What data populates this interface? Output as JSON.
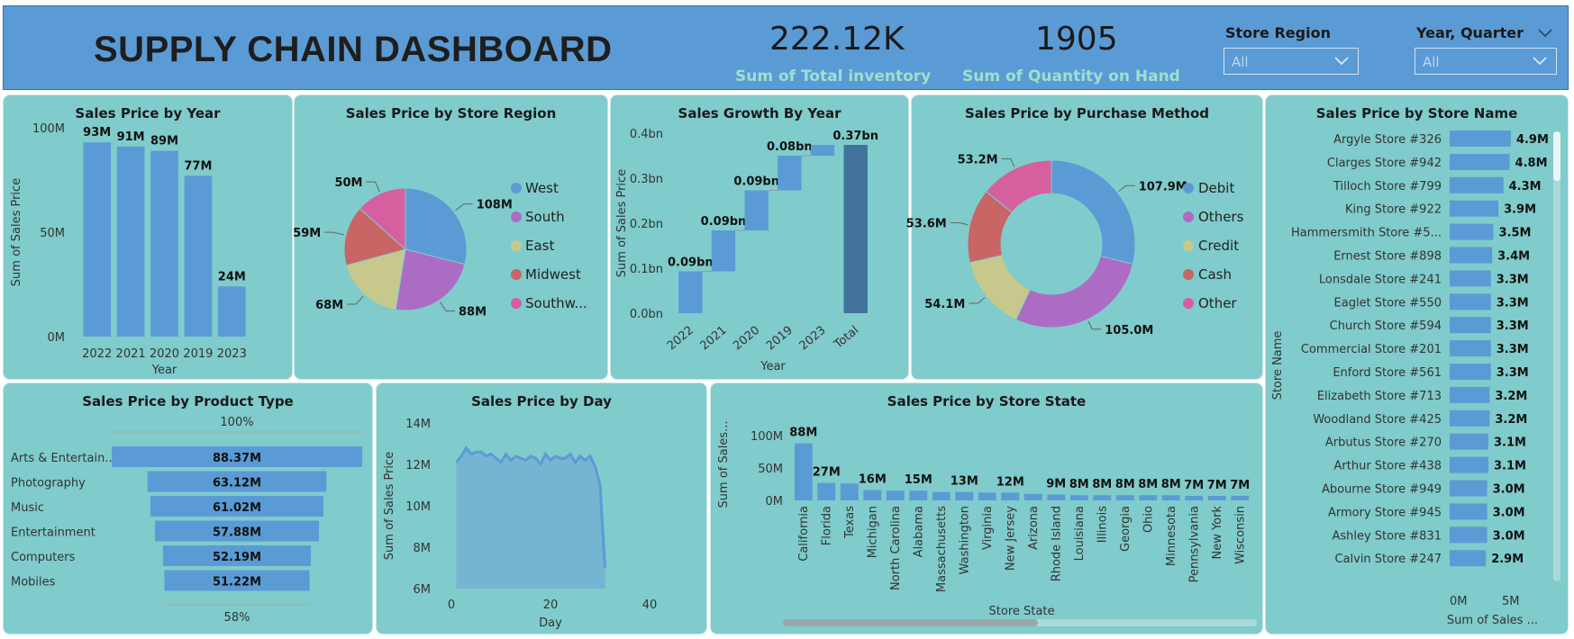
{
  "header": {
    "title": "SUPPLY CHAIN DASHBOARD",
    "kpi1": {
      "value": "222.12K",
      "label": "Sum of Total inventory"
    },
    "kpi2": {
      "value": "1905",
      "label": "Sum of Quantity on Hand"
    },
    "slicer_region": {
      "label": "Store Region",
      "value": "All"
    },
    "slicer_year": {
      "label": "Year, Quarter",
      "value": "All"
    }
  },
  "colors": {
    "panel": "#80cbcb",
    "bar": "#5b9bd5",
    "header": "#5b9bd5",
    "west": "#5b9bd5",
    "south": "#ad6cc4",
    "east": "#c7c98c",
    "midwest": "#c96565",
    "southwest": "#d65fa0",
    "waterfall_total": "#41729c"
  },
  "chart_data": [
    {
      "id": "year",
      "title": "Sales Price by Year",
      "type": "bar",
      "categories": [
        "2022",
        "2021",
        "2020",
        "2019",
        "2023"
      ],
      "values": [
        93,
        91,
        89,
        77,
        24
      ],
      "labels": [
        "93M",
        "91M",
        "89M",
        "77M",
        "24M"
      ],
      "ylim": [
        0,
        100
      ],
      "yticks": [
        "0M",
        "50M",
        "100M"
      ],
      "xlabel": "Year",
      "ylabel": "Sum of Sales Price"
    },
    {
      "id": "region",
      "title": "Sales Price by Store Region",
      "type": "pie",
      "categories": [
        "West",
        "South",
        "East",
        "Midwest",
        "Southw..."
      ],
      "values": [
        108,
        88,
        68,
        59,
        50
      ],
      "labels": [
        "108M",
        "88M",
        "68M",
        "59M",
        "50M"
      ]
    },
    {
      "id": "growth",
      "title": "Sales Growth By Year",
      "type": "waterfall",
      "categories": [
        "2022",
        "2021",
        "2020",
        "2019",
        "2023",
        "Total"
      ],
      "values": [
        0.093,
        0.091,
        0.089,
        0.077,
        0.024,
        0.374
      ],
      "labels": [
        "0.09bn",
        "0.09bn",
        "0.09bn",
        "0.08bn",
        "",
        "0.37bn"
      ],
      "ylim": [
        0,
        0.4
      ],
      "yticks": [
        "0.0bn",
        "0.1bn",
        "0.2bn",
        "0.3bn",
        "0.4bn"
      ],
      "xlabel": "Year",
      "ylabel": "Sum of Sales Price"
    },
    {
      "id": "purchase",
      "title": "Sales Price by Purchase Method",
      "type": "pie",
      "categories": [
        "Debit",
        "Others",
        "Credit",
        "Cash",
        "Other"
      ],
      "values": [
        107.9,
        105.0,
        54.1,
        53.6,
        53.2
      ],
      "labels": [
        "107.9M",
        "105.0M",
        "54.1M",
        "53.6M",
        "53.2M"
      ]
    },
    {
      "id": "storename",
      "title": "Sales Price by Store Name",
      "type": "bar",
      "categories": [
        "Argyle Store #326",
        "Clarges Store #942",
        "Tilloch Store #799",
        "King Store #922",
        "Hammersmith Store #5...",
        "Ernest Store #898",
        "Lonsdale Store #241",
        "Eaglet Store #550",
        "Church Store #594",
        "Commercial Store #201",
        "Enford Store #561",
        "Elizabeth Store #713",
        "Woodland Store #425",
        "Arbutus Store #270",
        "Arthur Store #438",
        "Abourne Store #949",
        "Armory Store #945",
        "Ashley Store #831",
        "Calvin Store #247"
      ],
      "values": [
        4.9,
        4.8,
        4.3,
        3.9,
        3.5,
        3.4,
        3.3,
        3.3,
        3.3,
        3.3,
        3.3,
        3.2,
        3.2,
        3.1,
        3.1,
        3.0,
        3.0,
        3.0,
        2.9
      ],
      "labels": [
        "4.9M",
        "4.8M",
        "4.3M",
        "3.9M",
        "3.5M",
        "3.4M",
        "3.3M",
        "3.3M",
        "3.3M",
        "3.3M",
        "3.3M",
        "3.2M",
        "3.2M",
        "3.1M",
        "3.1M",
        "3.0M",
        "3.0M",
        "3.0M",
        "2.9M"
      ],
      "xticks": [
        "0M",
        "5M"
      ],
      "xlabel": "Sum of Sales ...",
      "ylabel": "Store Name"
    },
    {
      "id": "product",
      "title": "Sales Price by Product Type",
      "type": "funnel",
      "categories": [
        "Arts & Entertain...",
        "Photography",
        "Music",
        "Entertainment",
        "Computers",
        "Mobiles"
      ],
      "values": [
        88.37,
        63.12,
        61.02,
        57.88,
        52.19,
        51.22
      ],
      "labels": [
        "88.37M",
        "63.12M",
        "61.02M",
        "57.88M",
        "52.19M",
        "51.22M"
      ],
      "top_pct": "100%",
      "bottom_pct": "58%"
    },
    {
      "id": "day",
      "title": "Sales Price by Day",
      "type": "area",
      "x": [
        1,
        2,
        3,
        4,
        5,
        6,
        7,
        8,
        9,
        10,
        11,
        12,
        13,
        14,
        15,
        16,
        17,
        18,
        19,
        20,
        21,
        22,
        23,
        24,
        25,
        26,
        27,
        28,
        29,
        30,
        31
      ],
      "values": [
        12.1,
        12.4,
        12.8,
        12.5,
        12.6,
        12.6,
        12.4,
        12.5,
        12.3,
        12.1,
        12.5,
        12.2,
        12.4,
        12.3,
        12.2,
        12.4,
        12.3,
        12.0,
        12.5,
        12.2,
        12.4,
        12.3,
        12.3,
        12.5,
        12.1,
        12.4,
        12.2,
        12.4,
        11.9,
        11.0,
        7.0
      ],
      "ylim": [
        6,
        14
      ],
      "yticks": [
        "6M",
        "8M",
        "10M",
        "12M",
        "14M"
      ],
      "xlim": [
        0,
        40
      ],
      "xticks": [
        "0",
        "20",
        "40"
      ],
      "xlabel": "Day",
      "ylabel": "Sum of Sales Price"
    },
    {
      "id": "state",
      "title": "Sales Price by Store State",
      "type": "bar",
      "categories": [
        "California",
        "Florida",
        "Texas",
        "Michigan",
        "North Carolina",
        "Alabama",
        "Massachusetts",
        "Washington",
        "Virginia",
        "New Jersey",
        "Arizona",
        "Rhode Island",
        "Louisiana",
        "Illinois",
        "Georgia",
        "Ohio",
        "Minnesota",
        "Pennsylvania",
        "New York",
        "Wisconsin"
      ],
      "values": [
        88,
        27,
        26,
        16,
        15,
        15,
        13,
        13,
        12,
        12,
        10,
        9,
        8,
        8,
        8,
        8,
        8,
        7,
        7,
        7
      ],
      "labels": [
        "88M",
        "27M",
        "",
        "16M",
        "",
        "15M",
        "",
        "13M",
        "",
        "12M",
        "",
        "9M",
        "8M",
        "8M",
        "8M",
        "8M",
        "8M",
        "7M",
        "7M",
        "7M"
      ],
      "ylim": [
        0,
        100
      ],
      "yticks": [
        "0M",
        "50M",
        "100M"
      ],
      "xlabel": "Store State",
      "ylabel": "Sum of Sales..."
    }
  ]
}
